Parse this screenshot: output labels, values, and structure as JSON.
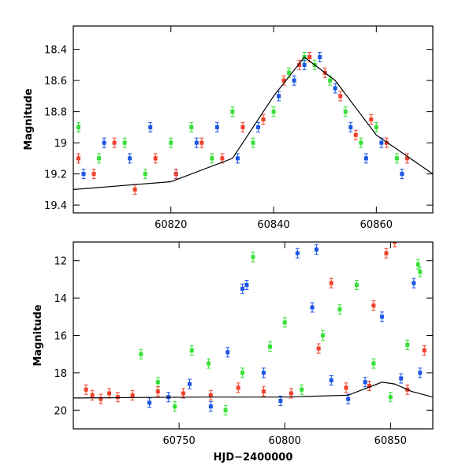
{
  "chart_data": [
    {
      "type": "scatter",
      "title": "",
      "xlabel": "",
      "ylabel": "Magnitude",
      "xlim": [
        60801,
        60871
      ],
      "ylim": [
        19.45,
        18.25
      ],
      "y_inverted": true,
      "xticks": [
        60820,
        60840,
        60860
      ],
      "yticks": [
        18.4,
        18.6,
        18.8,
        19,
        19.2,
        19.4
      ],
      "xtick_labels": [
        "60820",
        "60840",
        "60860"
      ],
      "ytick_labels": [
        "18.4",
        "18.6",
        "18.8",
        "19",
        "19.2",
        "19.4"
      ],
      "grid": false,
      "series": [
        {
          "color": "#33e033",
          "x": [
            60802,
            60806,
            60811,
            60815,
            60820,
            60824,
            60828,
            60832,
            60836,
            60840,
            60843,
            60846,
            60848,
            60851,
            60854,
            60857,
            60860,
            60864
          ],
          "y": [
            18.9,
            19.1,
            19.0,
            19.2,
            19.0,
            18.9,
            19.1,
            18.8,
            19.0,
            18.8,
            18.55,
            18.45,
            18.5,
            18.6,
            18.8,
            19.0,
            18.9,
            19.1
          ]
        },
        {
          "color": "#1a55e6",
          "x": [
            60803,
            60807,
            60812,
            60816,
            60821,
            60825,
            60829,
            60833,
            60837,
            60841,
            60844,
            60846,
            60849,
            60852,
            60855,
            60858,
            60861,
            60865
          ],
          "y": [
            19.2,
            19.0,
            19.1,
            18.9,
            19.2,
            19.0,
            18.9,
            19.1,
            18.9,
            18.7,
            18.6,
            18.5,
            18.45,
            18.65,
            18.9,
            19.1,
            19.0,
            19.2
          ]
        },
        {
          "color": "#f0402a",
          "x": [
            60802,
            60805,
            60809,
            60813,
            60817,
            60821,
            60826,
            60830,
            60834,
            60838,
            60842,
            60845,
            60847,
            60850,
            60853,
            60856,
            60859,
            60862,
            60866
          ],
          "y": [
            19.1,
            19.2,
            19.0,
            19.3,
            19.1,
            19.2,
            19.0,
            19.1,
            18.9,
            18.85,
            18.6,
            18.5,
            18.45,
            18.55,
            18.7,
            18.95,
            18.85,
            19.0,
            19.1
          ]
        }
      ],
      "model_curve": {
        "x": [
          60801,
          60820,
          60832,
          60840,
          60846,
          60852,
          60860,
          60871
        ],
        "y": [
          19.3,
          19.25,
          19.1,
          18.7,
          18.45,
          18.6,
          18.95,
          19.2
        ]
      }
    },
    {
      "type": "scatter",
      "title": "",
      "xlabel": "HJD−2400000",
      "ylabel": "Magnitude",
      "xlim": [
        60700,
        60870
      ],
      "ylim": [
        21,
        11
      ],
      "y_inverted": true,
      "xticks": [
        60750,
        60800,
        60850
      ],
      "yticks": [
        12,
        14,
        16,
        18,
        20
      ],
      "xtick_labels": [
        "60750",
        "60800",
        "60850"
      ],
      "ytick_labels": [
        "12",
        "14",
        "16",
        "18",
        "20"
      ],
      "grid": false,
      "series": [
        {
          "color": "#33e033",
          "x": [
            60732,
            60740,
            60748,
            60756,
            60764,
            60772,
            60780,
            60785,
            60793,
            60800,
            60808,
            60818,
            60826,
            60834,
            60842,
            60850,
            60858,
            60863,
            60864
          ],
          "y": [
            17.0,
            18.5,
            19.8,
            16.8,
            17.5,
            20.0,
            18.0,
            11.8,
            16.6,
            15.3,
            18.9,
            16.0,
            14.6,
            13.3,
            17.5,
            19.3,
            16.5,
            12.2,
            12.6
          ]
        },
        {
          "color": "#1a55e6",
          "x": [
            60736,
            60745,
            60755,
            60765,
            60773,
            60780,
            60782,
            60790,
            60798,
            60806,
            60813,
            60815,
            60822,
            60830,
            60838,
            60846,
            60855,
            60861,
            60864
          ],
          "y": [
            19.6,
            19.3,
            18.6,
            19.8,
            16.9,
            13.5,
            13.3,
            18.0,
            19.5,
            11.6,
            14.5,
            11.4,
            18.4,
            19.4,
            18.5,
            15.0,
            18.3,
            13.2,
            18.0
          ]
        },
        {
          "color": "#f0402a",
          "x": [
            60706,
            60709,
            60713,
            60717,
            60721,
            60728,
            60740,
            60752,
            60765,
            60778,
            60790,
            60803,
            60816,
            60822,
            60829,
            60840,
            60842,
            60848,
            60852,
            60858,
            60866
          ],
          "y": [
            18.9,
            19.2,
            19.4,
            19.1,
            19.3,
            19.2,
            19.0,
            19.1,
            19.2,
            18.8,
            19.0,
            19.1,
            16.7,
            13.2,
            18.8,
            18.7,
            14.4,
            11.6,
            11.0,
            18.9,
            16.8
          ]
        }
      ],
      "model_curve": {
        "x": [
          60700,
          60760,
          60800,
          60830,
          60846,
          60852,
          60860,
          60870
        ],
        "y": [
          19.35,
          19.3,
          19.3,
          19.2,
          18.5,
          18.6,
          19.0,
          19.3
        ]
      }
    }
  ]
}
